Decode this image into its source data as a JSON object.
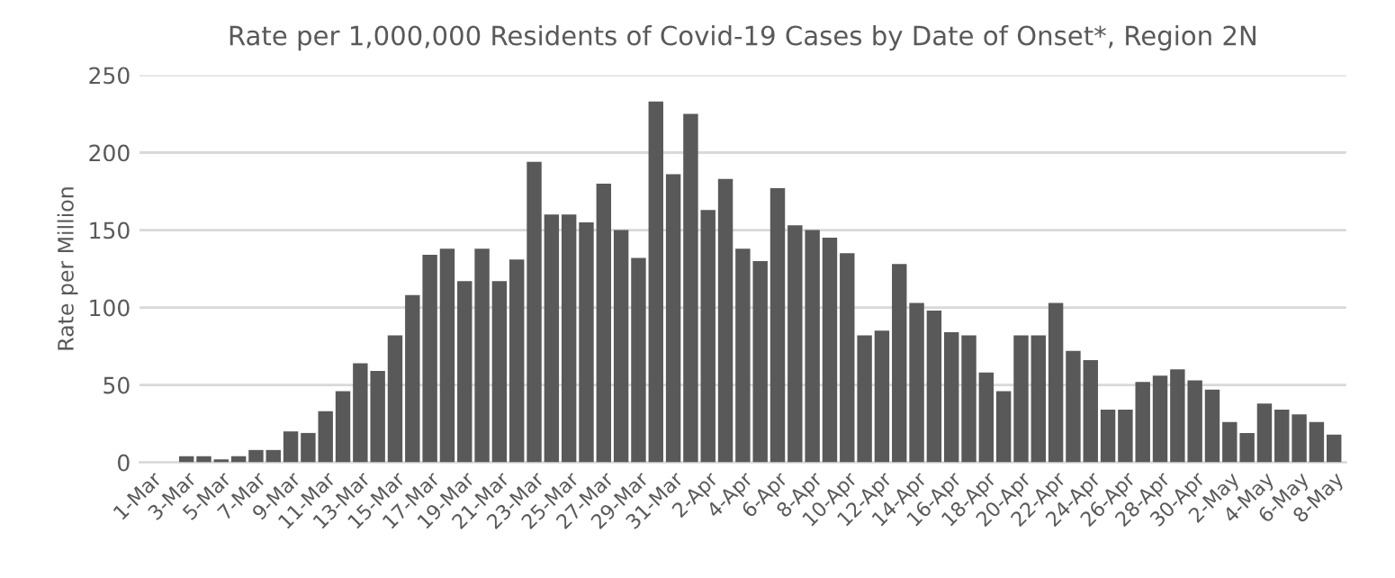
{
  "chart_data": {
    "type": "bar",
    "title": "Rate per 1,000,000 Residents of Covid-19 Cases by Date of Onset*, Region 2N",
    "ylabel": "Rate per Million",
    "categories": [
      "1-Mar",
      null,
      "3-Mar",
      null,
      "5-Mar",
      null,
      "7-Mar",
      null,
      "9-Mar",
      null,
      "11-Mar",
      null,
      "13-Mar",
      null,
      "15-Mar",
      null,
      "17-Mar",
      null,
      "19-Mar",
      null,
      "21-Mar",
      null,
      "23-Mar",
      null,
      "25-Mar",
      null,
      "27-Mar",
      null,
      "29-Mar",
      null,
      "31-Mar",
      null,
      "2-Apr",
      null,
      "4-Apr",
      null,
      "6-Apr",
      null,
      "8-Apr",
      null,
      "10-Apr",
      null,
      "12-Apr",
      null,
      "14-Apr",
      null,
      "16-Apr",
      null,
      "18-Apr",
      null,
      "20-Apr",
      null,
      "22-Apr",
      null,
      "24-Apr",
      null,
      "26-Apr",
      null,
      "28-Apr",
      null,
      "30-Apr",
      null,
      "2-May",
      null,
      "4-May",
      null,
      "6-May",
      null,
      "8-May"
    ],
    "values": [
      0,
      0,
      4,
      4,
      2,
      4,
      8,
      8,
      20,
      19,
      33,
      46,
      64,
      59,
      82,
      108,
      134,
      138,
      117,
      138,
      117,
      131,
      194,
      160,
      160,
      155,
      180,
      150,
      132,
      233,
      186,
      225,
      163,
      183,
      138,
      130,
      177,
      153,
      150,
      145,
      135,
      82,
      85,
      128,
      103,
      98,
      84,
      82,
      58,
      46,
      82,
      82,
      103,
      72,
      66,
      34,
      34,
      52,
      56,
      60,
      53,
      47,
      26,
      19,
      38,
      34,
      31,
      26,
      18
    ],
    "color": "#595959",
    "ylim": [
      0,
      250
    ],
    "yticks": [
      0,
      50,
      100,
      150,
      200,
      250
    ],
    "grid": "y"
  }
}
